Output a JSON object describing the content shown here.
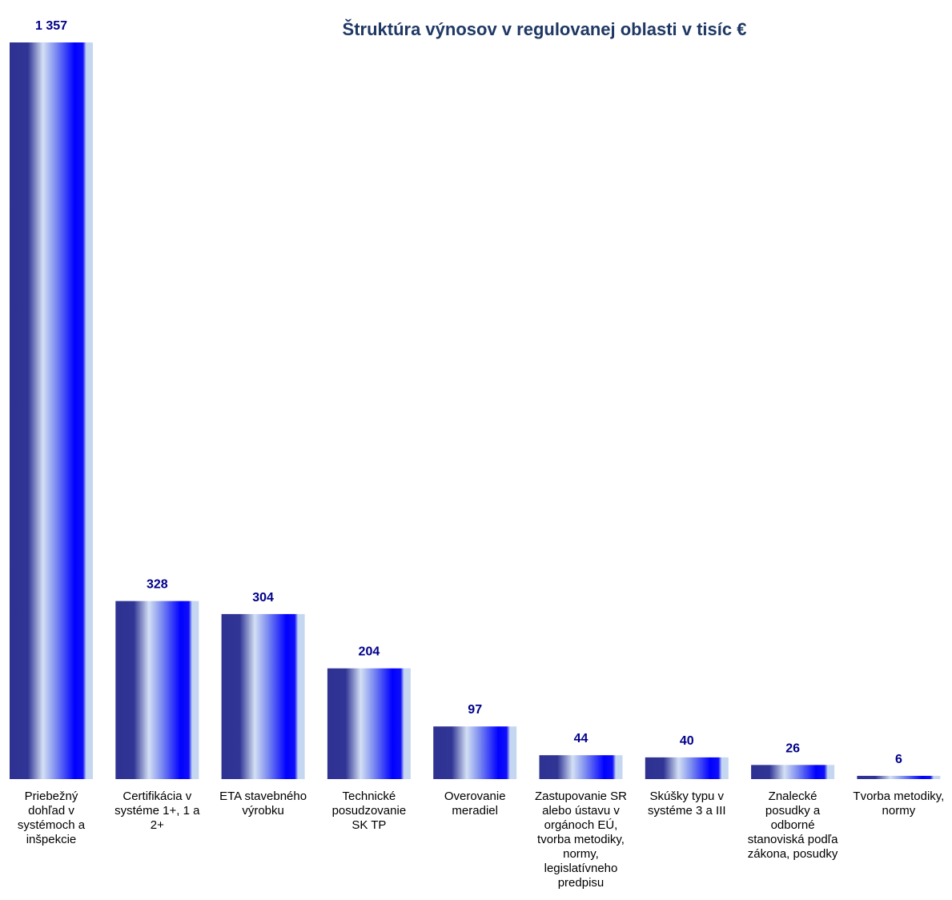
{
  "chart_data": {
    "type": "bar",
    "title": "Štruktúra výnosov v regulovanej oblasti v tisíc €",
    "xlabel": "",
    "ylabel": "",
    "categories": [
      [
        "Priebežný",
        "dohľad v",
        "systémoch a",
        "inšpekcie"
      ],
      [
        "Certifikácia v",
        "systéme 1+, 1 a",
        "2+"
      ],
      [
        "ETA stavebného",
        "výrobku"
      ],
      [
        "Technické",
        "posudzovanie",
        "SK TP"
      ],
      [
        "Overovanie",
        "meradiel"
      ],
      [
        "Zastupovanie SR",
        "alebo ústavu  v",
        "orgánoch EÚ,",
        "tvorba metodiky,",
        "normy,",
        "legislatívneho",
        "predpisu"
      ],
      [
        "Skúšky typu v",
        "systéme 3 a III"
      ],
      [
        "Znalecké",
        "posudky a",
        "odborné",
        "stanoviská podľa",
        "zákona, posudky"
      ],
      [
        "Tvorba metodiky,",
        "normy"
      ]
    ],
    "values": [
      1357,
      328,
      304,
      204,
      97,
      44,
      40,
      26,
      6
    ],
    "value_labels": [
      "1 357",
      "328",
      "304",
      "204",
      "97",
      "44",
      "40",
      "26",
      "6"
    ],
    "ylim": [
      0,
      1357
    ],
    "grid": false,
    "legend": "none",
    "colors": {
      "bar_dark": "#2e3192",
      "bar_light": "#c9d8f2",
      "bar_bright": "#0000ff",
      "value_label": "#00008b",
      "title": "#1f3864"
    }
  }
}
